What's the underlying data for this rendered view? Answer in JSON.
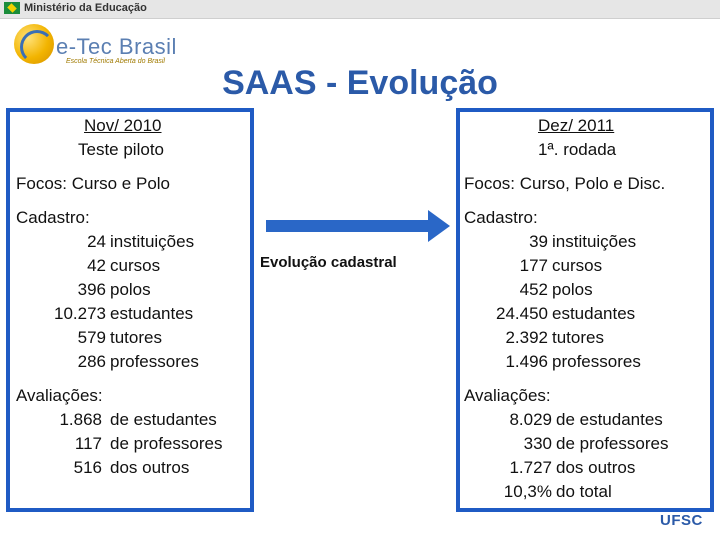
{
  "header": {
    "ministry": "Ministério da Educação",
    "brand": "e-Tec Brasil",
    "brand_tagline": "Escola Técnica Aberta do Brasil",
    "footer_logo": "UFSC"
  },
  "title": "SAAS - Evolução",
  "middle_label": "Evolução cadastral",
  "left": {
    "date": "Nov/ 2010",
    "subtitle": "Teste piloto",
    "focus": "Focos: Curso e Polo",
    "cadastro_label": "Cadastro:",
    "cadastro": [
      {
        "value": "24",
        "label": "instituições"
      },
      {
        "value": "42",
        "label": "cursos"
      },
      {
        "value": "396",
        "label": "polos"
      },
      {
        "value": "10.273",
        "label": "estudantes"
      },
      {
        "value": "579",
        "label": "tutores"
      },
      {
        "value": "286",
        "label": "professores"
      }
    ],
    "avaliacoes_label": "Avaliações:",
    "avaliacoes": [
      {
        "value": "1.868",
        "label": "de estudantes"
      },
      {
        "value": "117",
        "label": "de professores"
      },
      {
        "value": "516",
        "label": "dos outros"
      }
    ]
  },
  "right": {
    "date": "Dez/ 2011",
    "subtitle": "1ª. rodada",
    "focus": "Focos: Curso, Polo e Disc.",
    "cadastro_label": "Cadastro:",
    "cadastro": [
      {
        "value": "39",
        "label": "instituições"
      },
      {
        "value": "177",
        "label": "cursos"
      },
      {
        "value": "452",
        "label": "polos"
      },
      {
        "value": "24.450",
        "label": "estudantes"
      },
      {
        "value": "2.392",
        "label": "tutores"
      },
      {
        "value": "1.496",
        "label": "professores"
      }
    ],
    "avaliacoes_label": "Avaliações:",
    "avaliacoes": [
      {
        "value": "8.029",
        "label": "de estudantes"
      },
      {
        "value": "330",
        "label": "de professores"
      },
      {
        "value": "1.727",
        "label": "dos outros"
      },
      {
        "value": "10,3%",
        "label": "do total"
      }
    ]
  },
  "colors": {
    "accent": "#1f5bc4",
    "title": "#2b5aa8"
  }
}
